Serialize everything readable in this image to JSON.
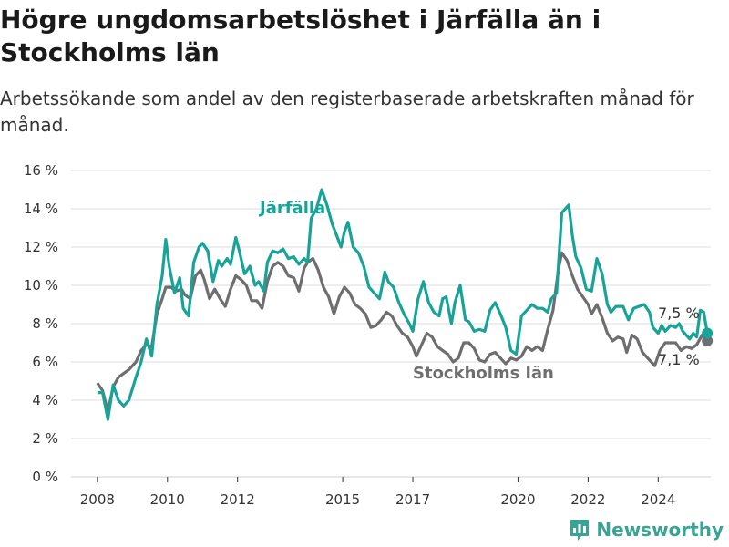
{
  "header": {
    "title": "Högre ungdomsarbetslöshet i Järfälla än i Stockholms län",
    "subtitle": "Arbetssökande som andel av den registerbaserade arbetskraften månad för månad."
  },
  "brand": {
    "name": "Newsworthy",
    "icon": "bar-chart-logo-icon"
  },
  "colors": {
    "jarfalla": "#17a398",
    "stockholm": "#6e6e70",
    "grid": "#dddddd"
  },
  "chart_data": {
    "type": "line",
    "ylim": [
      0,
      16
    ],
    "y_ticks": [
      "0 %",
      "2 %",
      "4 %",
      "6 %",
      "8 %",
      "10 %",
      "12 %",
      "14 %",
      "16 %"
    ],
    "x_ticks": [
      "2008",
      "2010",
      "2012",
      "2015",
      "2017",
      "2020",
      "2022",
      "2024"
    ],
    "x_tick_values": [
      2008,
      2010,
      2012,
      2015,
      2017,
      2020,
      2022,
      2024
    ],
    "xlim": [
      2007.25,
      2025.5
    ],
    "grid": true,
    "series": [
      {
        "name": "Järfälla",
        "end_label": "7,5 %",
        "points": [
          [
            2008.0,
            4.4
          ],
          [
            2008.15,
            4.4
          ],
          [
            2008.3,
            3.0
          ],
          [
            2008.45,
            4.8
          ],
          [
            2008.6,
            4.0
          ],
          [
            2008.75,
            3.7
          ],
          [
            2008.9,
            4.0
          ],
          [
            2009.1,
            5.2
          ],
          [
            2009.25,
            6.0
          ],
          [
            2009.4,
            7.2
          ],
          [
            2009.55,
            6.3
          ],
          [
            2009.7,
            9.0
          ],
          [
            2009.85,
            10.5
          ],
          [
            2009.95,
            12.4
          ],
          [
            2010.05,
            11.0
          ],
          [
            2010.2,
            9.6
          ],
          [
            2010.35,
            10.4
          ],
          [
            2010.45,
            8.8
          ],
          [
            2010.6,
            8.4
          ],
          [
            2010.75,
            11.2
          ],
          [
            2010.9,
            12.0
          ],
          [
            2011.0,
            12.2
          ],
          [
            2011.15,
            11.8
          ],
          [
            2011.3,
            10.2
          ],
          [
            2011.45,
            11.3
          ],
          [
            2011.55,
            11.0
          ],
          [
            2011.7,
            11.4
          ],
          [
            2011.8,
            11.1
          ],
          [
            2011.95,
            12.5
          ],
          [
            2012.05,
            11.8
          ],
          [
            2012.2,
            10.6
          ],
          [
            2012.35,
            11.0
          ],
          [
            2012.5,
            10.0
          ],
          [
            2012.6,
            10.2
          ],
          [
            2012.75,
            9.7
          ],
          [
            2012.85,
            11.2
          ],
          [
            2013.0,
            11.8
          ],
          [
            2013.15,
            11.7
          ],
          [
            2013.3,
            11.9
          ],
          [
            2013.45,
            11.4
          ],
          [
            2013.6,
            11.5
          ],
          [
            2013.75,
            11.1
          ],
          [
            2013.9,
            11.4
          ],
          [
            2014.0,
            11.2
          ],
          [
            2014.1,
            13.5
          ],
          [
            2014.25,
            14.0
          ],
          [
            2014.4,
            15.0
          ],
          [
            2014.55,
            14.2
          ],
          [
            2014.7,
            13.2
          ],
          [
            2014.85,
            12.5
          ],
          [
            2014.95,
            12.0
          ],
          [
            2015.05,
            12.8
          ],
          [
            2015.15,
            13.3
          ],
          [
            2015.3,
            12.0
          ],
          [
            2015.45,
            11.7
          ],
          [
            2015.6,
            11.0
          ],
          [
            2015.75,
            9.9
          ],
          [
            2015.9,
            9.6
          ],
          [
            2016.05,
            9.3
          ],
          [
            2016.2,
            10.7
          ],
          [
            2016.3,
            10.2
          ],
          [
            2016.45,
            9.9
          ],
          [
            2016.6,
            9.1
          ],
          [
            2016.75,
            8.5
          ],
          [
            2016.9,
            8.0
          ],
          [
            2017.0,
            7.6
          ],
          [
            2017.15,
            9.3
          ],
          [
            2017.3,
            10.2
          ],
          [
            2017.45,
            9.1
          ],
          [
            2017.6,
            8.6
          ],
          [
            2017.75,
            8.4
          ],
          [
            2017.85,
            9.3
          ],
          [
            2017.95,
            9.4
          ],
          [
            2018.1,
            8.0
          ],
          [
            2018.2,
            9.1
          ],
          [
            2018.35,
            10.0
          ],
          [
            2018.5,
            8.2
          ],
          [
            2018.6,
            8.1
          ],
          [
            2018.75,
            7.6
          ],
          [
            2018.9,
            7.7
          ],
          [
            2019.05,
            7.6
          ],
          [
            2019.2,
            8.7
          ],
          [
            2019.35,
            9.1
          ],
          [
            2019.5,
            8.5
          ],
          [
            2019.65,
            7.8
          ],
          [
            2019.8,
            6.6
          ],
          [
            2019.95,
            6.4
          ],
          [
            2020.1,
            8.4
          ],
          [
            2020.25,
            8.7
          ],
          [
            2020.4,
            9.0
          ],
          [
            2020.55,
            8.8
          ],
          [
            2020.7,
            8.8
          ],
          [
            2020.85,
            8.6
          ],
          [
            2020.95,
            9.3
          ],
          [
            2021.1,
            9.6
          ],
          [
            2021.25,
            13.8
          ],
          [
            2021.35,
            14.0
          ],
          [
            2021.45,
            14.2
          ],
          [
            2021.55,
            12.6
          ],
          [
            2021.65,
            11.5
          ],
          [
            2021.8,
            10.9
          ],
          [
            2021.95,
            9.8
          ],
          [
            2022.1,
            9.7
          ],
          [
            2022.25,
            11.4
          ],
          [
            2022.4,
            10.6
          ],
          [
            2022.55,
            9.0
          ],
          [
            2022.65,
            8.6
          ],
          [
            2022.8,
            8.9
          ],
          [
            2023.0,
            8.9
          ],
          [
            2023.15,
            8.2
          ],
          [
            2023.3,
            8.8
          ],
          [
            2023.45,
            8.9
          ],
          [
            2023.6,
            9.0
          ],
          [
            2023.75,
            8.6
          ],
          [
            2023.85,
            7.8
          ],
          [
            2024.0,
            7.5
          ],
          [
            2024.1,
            7.9
          ],
          [
            2024.2,
            7.6
          ],
          [
            2024.35,
            7.9
          ],
          [
            2024.5,
            7.8
          ],
          [
            2024.6,
            8.0
          ],
          [
            2024.7,
            7.6
          ],
          [
            2024.8,
            7.4
          ],
          [
            2024.9,
            7.2
          ],
          [
            2025.0,
            7.5
          ],
          [
            2025.1,
            7.3
          ],
          [
            2025.2,
            8.7
          ],
          [
            2025.3,
            8.6
          ],
          [
            2025.4,
            7.5
          ]
        ]
      },
      {
        "name": "Stockholms län",
        "end_label": "7,1 %",
        "points": [
          [
            2008.0,
            4.9
          ],
          [
            2008.15,
            4.5
          ],
          [
            2008.3,
            3.4
          ],
          [
            2008.45,
            4.7
          ],
          [
            2008.6,
            5.2
          ],
          [
            2008.75,
            5.4
          ],
          [
            2008.9,
            5.6
          ],
          [
            2009.1,
            6.0
          ],
          [
            2009.25,
            6.6
          ],
          [
            2009.4,
            6.9
          ],
          [
            2009.55,
            6.8
          ],
          [
            2009.7,
            8.5
          ],
          [
            2009.85,
            9.3
          ],
          [
            2009.95,
            9.9
          ],
          [
            2010.1,
            9.9
          ],
          [
            2010.25,
            9.7
          ],
          [
            2010.4,
            9.8
          ],
          [
            2010.5,
            9.5
          ],
          [
            2010.65,
            9.3
          ],
          [
            2010.8,
            10.5
          ],
          [
            2010.95,
            10.8
          ],
          [
            2011.05,
            10.3
          ],
          [
            2011.2,
            9.3
          ],
          [
            2011.35,
            9.8
          ],
          [
            2011.5,
            9.3
          ],
          [
            2011.65,
            8.9
          ],
          [
            2011.8,
            9.8
          ],
          [
            2011.95,
            10.5
          ],
          [
            2012.1,
            10.3
          ],
          [
            2012.25,
            10.0
          ],
          [
            2012.4,
            9.2
          ],
          [
            2012.55,
            9.2
          ],
          [
            2012.7,
            8.8
          ],
          [
            2012.85,
            10.2
          ],
          [
            2013.0,
            11.0
          ],
          [
            2013.15,
            11.2
          ],
          [
            2013.3,
            11.0
          ],
          [
            2013.45,
            10.5
          ],
          [
            2013.6,
            10.4
          ],
          [
            2013.75,
            9.7
          ],
          [
            2013.9,
            10.9
          ],
          [
            2014.0,
            11.2
          ],
          [
            2014.15,
            11.4
          ],
          [
            2014.3,
            10.8
          ],
          [
            2014.45,
            9.9
          ],
          [
            2014.6,
            9.4
          ],
          [
            2014.75,
            8.5
          ],
          [
            2014.9,
            9.4
          ],
          [
            2015.05,
            9.9
          ],
          [
            2015.2,
            9.6
          ],
          [
            2015.35,
            9.0
          ],
          [
            2015.5,
            8.8
          ],
          [
            2015.65,
            8.5
          ],
          [
            2015.8,
            7.8
          ],
          [
            2015.95,
            7.9
          ],
          [
            2016.1,
            8.2
          ],
          [
            2016.25,
            8.6
          ],
          [
            2016.4,
            8.4
          ],
          [
            2016.55,
            7.9
          ],
          [
            2016.7,
            7.5
          ],
          [
            2016.85,
            7.3
          ],
          [
            2017.0,
            6.8
          ],
          [
            2017.1,
            6.3
          ],
          [
            2017.25,
            6.9
          ],
          [
            2017.4,
            7.5
          ],
          [
            2017.55,
            7.3
          ],
          [
            2017.7,
            6.8
          ],
          [
            2017.85,
            6.6
          ],
          [
            2018.0,
            6.4
          ],
          [
            2018.15,
            6.0
          ],
          [
            2018.3,
            6.2
          ],
          [
            2018.45,
            7.0
          ],
          [
            2018.6,
            7.0
          ],
          [
            2018.75,
            6.7
          ],
          [
            2018.9,
            6.1
          ],
          [
            2019.05,
            6.0
          ],
          [
            2019.2,
            6.4
          ],
          [
            2019.35,
            6.5
          ],
          [
            2019.5,
            6.2
          ],
          [
            2019.65,
            5.9
          ],
          [
            2019.8,
            6.2
          ],
          [
            2019.95,
            6.1
          ],
          [
            2020.1,
            6.3
          ],
          [
            2020.25,
            6.8
          ],
          [
            2020.4,
            6.6
          ],
          [
            2020.55,
            6.8
          ],
          [
            2020.7,
            6.6
          ],
          [
            2020.85,
            7.7
          ],
          [
            2021.0,
            8.7
          ],
          [
            2021.15,
            10.8
          ],
          [
            2021.25,
            11.7
          ],
          [
            2021.4,
            11.3
          ],
          [
            2021.55,
            10.5
          ],
          [
            2021.7,
            9.8
          ],
          [
            2021.85,
            9.4
          ],
          [
            2022.0,
            9.0
          ],
          [
            2022.1,
            8.5
          ],
          [
            2022.25,
            9.0
          ],
          [
            2022.4,
            8.3
          ],
          [
            2022.55,
            7.5
          ],
          [
            2022.7,
            7.1
          ],
          [
            2022.85,
            7.3
          ],
          [
            2023.0,
            7.2
          ],
          [
            2023.1,
            6.5
          ],
          [
            2023.25,
            7.4
          ],
          [
            2023.4,
            7.2
          ],
          [
            2023.55,
            6.5
          ],
          [
            2023.65,
            6.3
          ],
          [
            2023.8,
            6.0
          ],
          [
            2023.9,
            5.8
          ],
          [
            2024.05,
            6.6
          ],
          [
            2024.2,
            7.0
          ],
          [
            2024.35,
            7.0
          ],
          [
            2024.5,
            7.0
          ],
          [
            2024.65,
            6.6
          ],
          [
            2024.8,
            6.8
          ],
          [
            2024.95,
            6.7
          ],
          [
            2025.1,
            6.9
          ],
          [
            2025.25,
            7.4
          ],
          [
            2025.4,
            7.1
          ]
        ]
      }
    ]
  }
}
